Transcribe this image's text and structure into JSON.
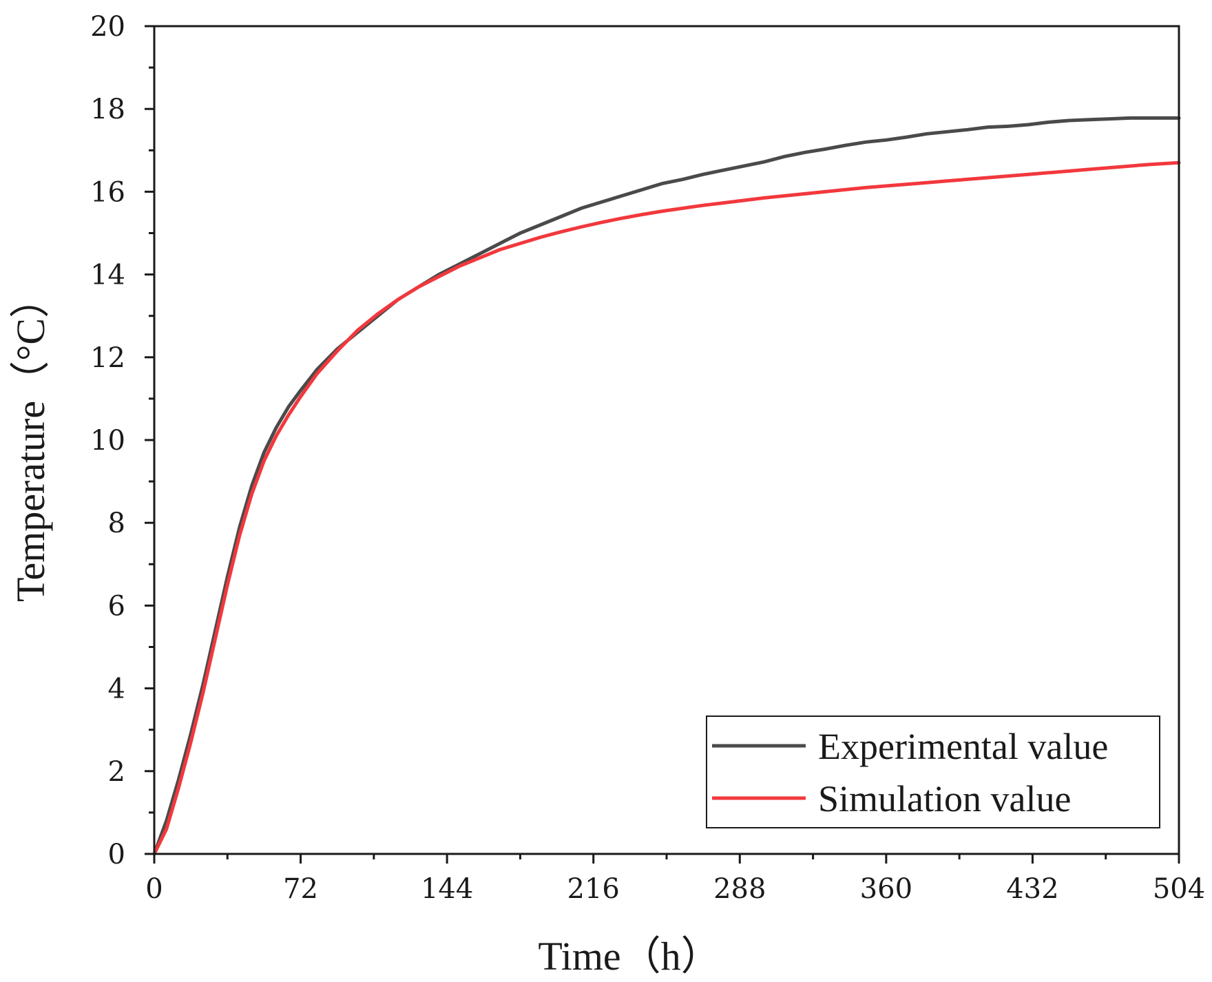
{
  "chart_data": {
    "type": "line",
    "title": "",
    "xlabel": "Time（h）",
    "ylabel": "Temperature（°C）",
    "xlim": [
      0,
      504
    ],
    "ylim": [
      0,
      20
    ],
    "xticks": [
      0,
      72,
      144,
      216,
      288,
      360,
      432,
      504
    ],
    "yticks": [
      0,
      2,
      4,
      6,
      8,
      10,
      12,
      14,
      16,
      18,
      20
    ],
    "xtick_labels": [
      "0",
      "72",
      "144",
      "216",
      "288",
      "360",
      "432",
      "504"
    ],
    "ytick_labels": [
      "0",
      "2",
      "4",
      "6",
      "8",
      "10",
      "12",
      "14",
      "16",
      "18",
      "20"
    ],
    "grid": false,
    "legend_position": "bottom-right",
    "series": [
      {
        "name": "Experimental value",
        "color": "#4a4a4a",
        "x": [
          0,
          6,
          12,
          18,
          24,
          30,
          36,
          42,
          48,
          54,
          60,
          66,
          72,
          80,
          90,
          100,
          110,
          120,
          130,
          140,
          150,
          160,
          170,
          180,
          190,
          200,
          210,
          220,
          230,
          240,
          250,
          260,
          270,
          280,
          290,
          300,
          310,
          320,
          330,
          340,
          350,
          360,
          370,
          380,
          390,
          400,
          410,
          420,
          430,
          440,
          450,
          460,
          470,
          480,
          490,
          504
        ],
        "values": [
          0,
          0.8,
          1.8,
          2.9,
          4.1,
          5.4,
          6.7,
          7.9,
          8.9,
          9.7,
          10.3,
          10.8,
          11.2,
          11.7,
          12.2,
          12.6,
          13.0,
          13.4,
          13.7,
          14.0,
          14.25,
          14.5,
          14.75,
          15.0,
          15.2,
          15.4,
          15.6,
          15.75,
          15.9,
          16.05,
          16.2,
          16.3,
          16.42,
          16.52,
          16.62,
          16.72,
          16.85,
          16.95,
          17.03,
          17.12,
          17.2,
          17.25,
          17.32,
          17.4,
          17.45,
          17.5,
          17.56,
          17.58,
          17.62,
          17.68,
          17.72,
          17.74,
          17.76,
          17.78,
          17.78,
          17.78
        ]
      },
      {
        "name": "Simulation value",
        "color": "#f2383d",
        "x": [
          0,
          6,
          12,
          18,
          24,
          30,
          36,
          42,
          48,
          54,
          60,
          66,
          72,
          80,
          90,
          100,
          110,
          120,
          130,
          140,
          150,
          160,
          170,
          180,
          190,
          200,
          210,
          220,
          230,
          240,
          250,
          260,
          270,
          280,
          290,
          300,
          310,
          320,
          330,
          340,
          350,
          360,
          370,
          380,
          390,
          400,
          410,
          420,
          430,
          440,
          450,
          460,
          470,
          480,
          490,
          504
        ],
        "values": [
          0,
          0.6,
          1.6,
          2.7,
          3.9,
          5.2,
          6.5,
          7.7,
          8.7,
          9.5,
          10.1,
          10.6,
          11.05,
          11.6,
          12.15,
          12.65,
          13.05,
          13.4,
          13.7,
          13.95,
          14.2,
          14.4,
          14.6,
          14.75,
          14.9,
          15.03,
          15.15,
          15.26,
          15.36,
          15.45,
          15.53,
          15.6,
          15.67,
          15.73,
          15.79,
          15.85,
          15.9,
          15.95,
          16.0,
          16.05,
          16.1,
          16.14,
          16.18,
          16.22,
          16.26,
          16.3,
          16.34,
          16.38,
          16.42,
          16.46,
          16.5,
          16.54,
          16.58,
          16.62,
          16.66,
          16.7
        ]
      }
    ]
  }
}
